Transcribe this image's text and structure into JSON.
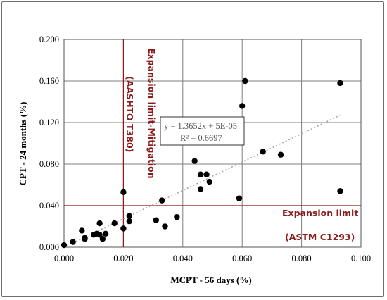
{
  "chart_data": {
    "type": "scatter",
    "xlabel": "MCPT - 56 days (%)",
    "ylabel": "CPT - 24 months (%)",
    "xlim": [
      0,
      0.1
    ],
    "ylim": [
      0,
      0.2
    ],
    "x_ticks": [
      "0.000",
      "0.020",
      "0.040",
      "0.060",
      "0.080",
      "0.100"
    ],
    "y_ticks": [
      "0.000",
      "0.040",
      "0.080",
      "0.120",
      "0.160",
      "0.200"
    ],
    "grid": true,
    "marker_color": "#000000",
    "series": [
      {
        "points": [
          [
            0.0,
            0.002
          ],
          [
            0.003,
            0.005
          ],
          [
            0.006,
            0.016
          ],
          [
            0.007,
            0.008
          ],
          [
            0.007,
            0.009
          ],
          [
            0.01,
            0.012
          ],
          [
            0.011,
            0.013
          ],
          [
            0.012,
            0.023
          ],
          [
            0.012,
            0.012
          ],
          [
            0.013,
            0.008
          ],
          [
            0.014,
            0.013
          ],
          [
            0.017,
            0.023
          ],
          [
            0.02,
            0.053
          ],
          [
            0.02,
            0.018
          ],
          [
            0.022,
            0.03
          ],
          [
            0.022,
            0.025
          ],
          [
            0.031,
            0.026
          ],
          [
            0.033,
            0.045
          ],
          [
            0.034,
            0.02
          ],
          [
            0.038,
            0.029
          ],
          [
            0.044,
            0.083
          ],
          [
            0.046,
            0.07
          ],
          [
            0.046,
            0.056
          ],
          [
            0.048,
            0.07
          ],
          [
            0.049,
            0.063
          ],
          [
            0.059,
            0.047
          ],
          [
            0.06,
            0.136
          ],
          [
            0.061,
            0.16
          ],
          [
            0.067,
            0.092
          ],
          [
            0.073,
            0.089
          ],
          [
            0.093,
            0.158
          ],
          [
            0.093,
            0.054
          ]
        ]
      }
    ],
    "trendline": {
      "style": "dotted",
      "color": "#a8a8a8",
      "slope": 1.3652,
      "intercept": 5e-05,
      "x_range": [
        0.004,
        0.093
      ],
      "equation": "y = 1.3652x + 5E-05",
      "r_squared": "R² = 0.6697"
    },
    "reference_lines": {
      "color": "#8b1a1a",
      "vertical": {
        "x": 0.02,
        "label_line1": "Expansion limit-Mitigation",
        "label_line2": "(AASHTO T380)"
      },
      "horizontal": {
        "y": 0.04,
        "label_line1": "Expansion limit",
        "label_line2": "(ASTM C1293)"
      }
    }
  }
}
